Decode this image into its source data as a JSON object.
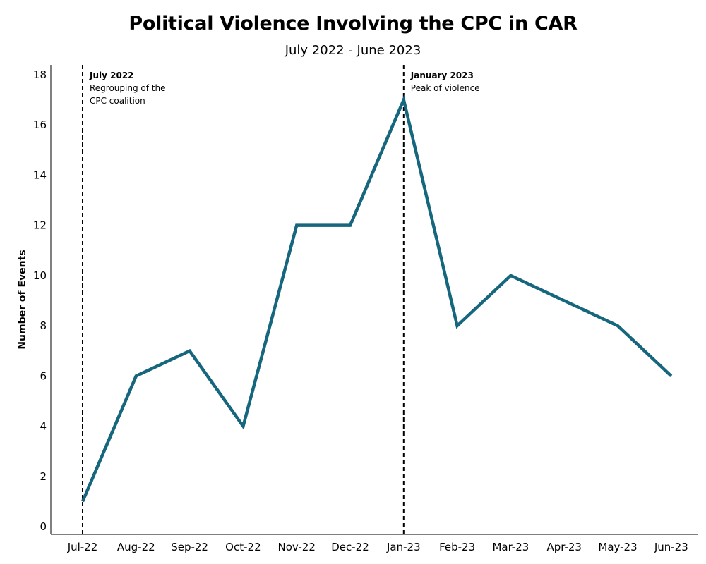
{
  "chart_data": {
    "type": "line",
    "title": "Political Violence Involving the CPC in CAR",
    "subtitle": "July 2022 - June 2023",
    "xlabel": "",
    "ylabel": "Number of Events",
    "categories": [
      "Jul-22",
      "Aug-22",
      "Sep-22",
      "Oct-22",
      "Nov-22",
      "Dec-22",
      "Jan-23",
      "Feb-23",
      "Mar-23",
      "Apr-23",
      "May-23",
      "Jun-23"
    ],
    "series": [
      {
        "values": [
          1,
          6,
          7,
          4,
          12,
          12,
          17,
          8,
          10,
          9,
          8,
          6
        ]
      }
    ],
    "ylim": [
      0,
      18
    ],
    "yticks": [
      0,
      2,
      4,
      6,
      8,
      10,
      12,
      14,
      16,
      18
    ],
    "grid": false,
    "line_color": "#16667d",
    "annotations": [
      {
        "category": "Jul-22",
        "heading": "July 2022",
        "text": "Regrouping of the CPC coalition"
      },
      {
        "category": "Jan-23",
        "heading": "January 2023",
        "text": "Peak of violence"
      }
    ]
  }
}
